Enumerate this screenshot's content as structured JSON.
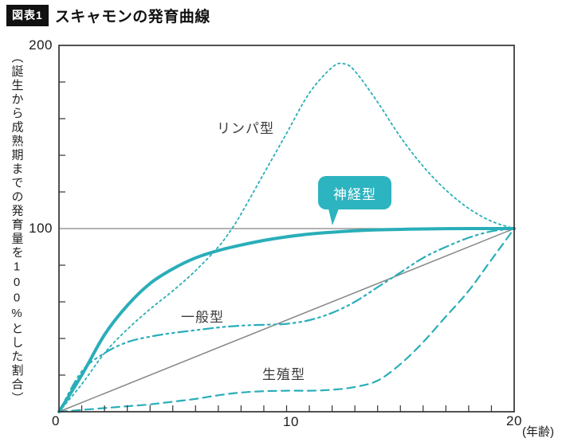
{
  "header": {
    "badge": "図表1",
    "title": "スキャモンの発育曲線"
  },
  "y_axis_label": "（誕生から成熟期までの発育量を100%とした割合）",
  "axes": {
    "y_ticks": [
      "200",
      "100",
      "0"
    ],
    "x_ticks": [
      "0",
      "10",
      "20"
    ],
    "x_unit_label": "(年齢)"
  },
  "colors": {
    "accent_teal": "#29aeb9",
    "bubble_teal": "#2cb4c0",
    "reference_gray": "#858585",
    "axis_dark": "#333333",
    "badge_black": "#111111"
  },
  "chart_data": {
    "type": "line",
    "title": "スキャモンの発育曲線",
    "xlabel": "(年齢)",
    "ylabel": "（誕生から成熟期までの発育量を100%とした割合）",
    "xlim": [
      0,
      20
    ],
    "ylim": [
      0,
      200
    ],
    "x_tick_interval": 1,
    "y_tick_interval": 20,
    "grid": false,
    "guide_line_y": 100,
    "reference_line": {
      "key": "linear-reference",
      "style": "solid-gray",
      "points": [
        [
          0,
          0
        ],
        [
          20,
          100
        ]
      ]
    },
    "series": [
      {
        "name": "リンパ型",
        "key": "lymphoid",
        "style": "dotted",
        "points": [
          [
            0,
            0
          ],
          [
            1,
            15
          ],
          [
            2,
            32
          ],
          [
            3,
            45
          ],
          [
            4,
            56
          ],
          [
            5,
            66
          ],
          [
            6,
            77
          ],
          [
            7,
            90
          ],
          [
            7.6,
            100
          ],
          [
            8,
            108
          ],
          [
            9,
            130
          ],
          [
            10,
            152
          ],
          [
            11,
            174
          ],
          [
            12,
            188
          ],
          [
            12.5,
            190
          ],
          [
            13,
            186
          ],
          [
            14,
            169
          ],
          [
            15,
            150
          ],
          [
            16,
            134
          ],
          [
            17,
            121
          ],
          [
            18,
            111
          ],
          [
            19,
            104
          ],
          [
            20,
            100
          ]
        ]
      },
      {
        "name": "神経型",
        "key": "neural",
        "style": "solid",
        "points": [
          [
            0,
            0
          ],
          [
            1,
            20
          ],
          [
            2,
            42
          ],
          [
            3,
            58
          ],
          [
            4,
            70
          ],
          [
            5,
            78
          ],
          [
            6,
            84
          ],
          [
            7,
            88
          ],
          [
            8,
            91
          ],
          [
            9,
            93.5
          ],
          [
            10,
            95.5
          ],
          [
            11,
            97
          ],
          [
            12,
            98
          ],
          [
            13,
            98.8
          ],
          [
            14,
            99.3
          ],
          [
            16,
            99.8
          ],
          [
            18,
            100
          ],
          [
            20,
            100
          ]
        ]
      },
      {
        "name": "一般型",
        "key": "general",
        "style": "dash-dot-dot",
        "points": [
          [
            0,
            0
          ],
          [
            1,
            22
          ],
          [
            2,
            32
          ],
          [
            3,
            38
          ],
          [
            4,
            41
          ],
          [
            5,
            43
          ],
          [
            6,
            44.5
          ],
          [
            7,
            46
          ],
          [
            8,
            47
          ],
          [
            9,
            47.5
          ],
          [
            10,
            48
          ],
          [
            11,
            50
          ],
          [
            12,
            54
          ],
          [
            13,
            60
          ],
          [
            14,
            68
          ],
          [
            15,
            76
          ],
          [
            16,
            84
          ],
          [
            17,
            90
          ],
          [
            18,
            95
          ],
          [
            19,
            98.5
          ],
          [
            20,
            100
          ]
        ]
      },
      {
        "name": "生殖型",
        "key": "genital",
        "style": "dashed",
        "points": [
          [
            0,
            0
          ],
          [
            1,
            1
          ],
          [
            2,
            2
          ],
          [
            3,
            3
          ],
          [
            4,
            4
          ],
          [
            5,
            5.5
          ],
          [
            6,
            7
          ],
          [
            7,
            9
          ],
          [
            8,
            10.5
          ],
          [
            9,
            11.2
          ],
          [
            10,
            11.5
          ],
          [
            11,
            11.5
          ],
          [
            12,
            12
          ],
          [
            13,
            13.5
          ],
          [
            14,
            17
          ],
          [
            15,
            26
          ],
          [
            16,
            38
          ],
          [
            17,
            52
          ],
          [
            18,
            66
          ],
          [
            19,
            83
          ],
          [
            20,
            100
          ]
        ]
      }
    ],
    "legend_position": "inline-labels"
  }
}
